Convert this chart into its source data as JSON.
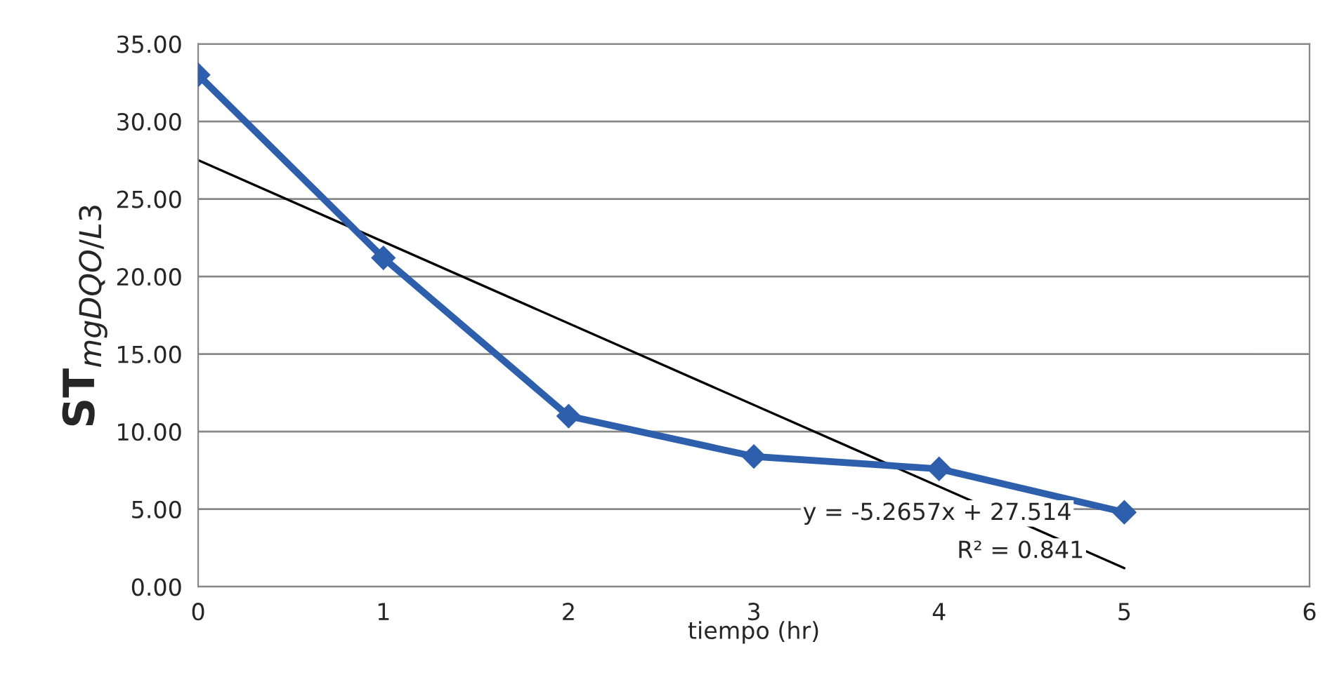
{
  "chart_data": {
    "type": "line",
    "xlabel": "tiempo (hr)",
    "ylabel": "ST$_{mgDQO/L3}$",
    "series": [
      {
        "color": "#2e5fad",
        "x": [
          0,
          1,
          2,
          3,
          4,
          5
        ],
        "values": [
          33.0,
          21.2,
          11.0,
          8.4,
          7.6,
          4.8
        ],
        "marker": "diamond"
      },
      {
        "color": "#000000",
        "x": [
          0,
          5
        ],
        "values": [
          27.5,
          1.2
        ],
        "marker": "none"
      }
    ],
    "xlim": [
      0,
      6
    ],
    "xticks": [
      0,
      1,
      2,
      3,
      4,
      5,
      6
    ],
    "ylim": [
      0,
      35
    ],
    "yticks": [
      {
        "value": 0,
        "label": "0.00"
      },
      {
        "value": 5,
        "label": "5.00"
      },
      {
        "value": 10,
        "label": "10.00"
      },
      {
        "value": 15,
        "label": "15.00"
      },
      {
        "value": 20,
        "label": "20.00"
      },
      {
        "value": 25,
        "label": "25.00"
      },
      {
        "value": 30,
        "label": "30.00"
      },
      {
        "value": 35,
        "label": "35.00"
      }
    ],
    "grid": "y",
    "annotations": [
      "y = -5.2657x + 27.514",
      "R² = 0.841"
    ]
  }
}
